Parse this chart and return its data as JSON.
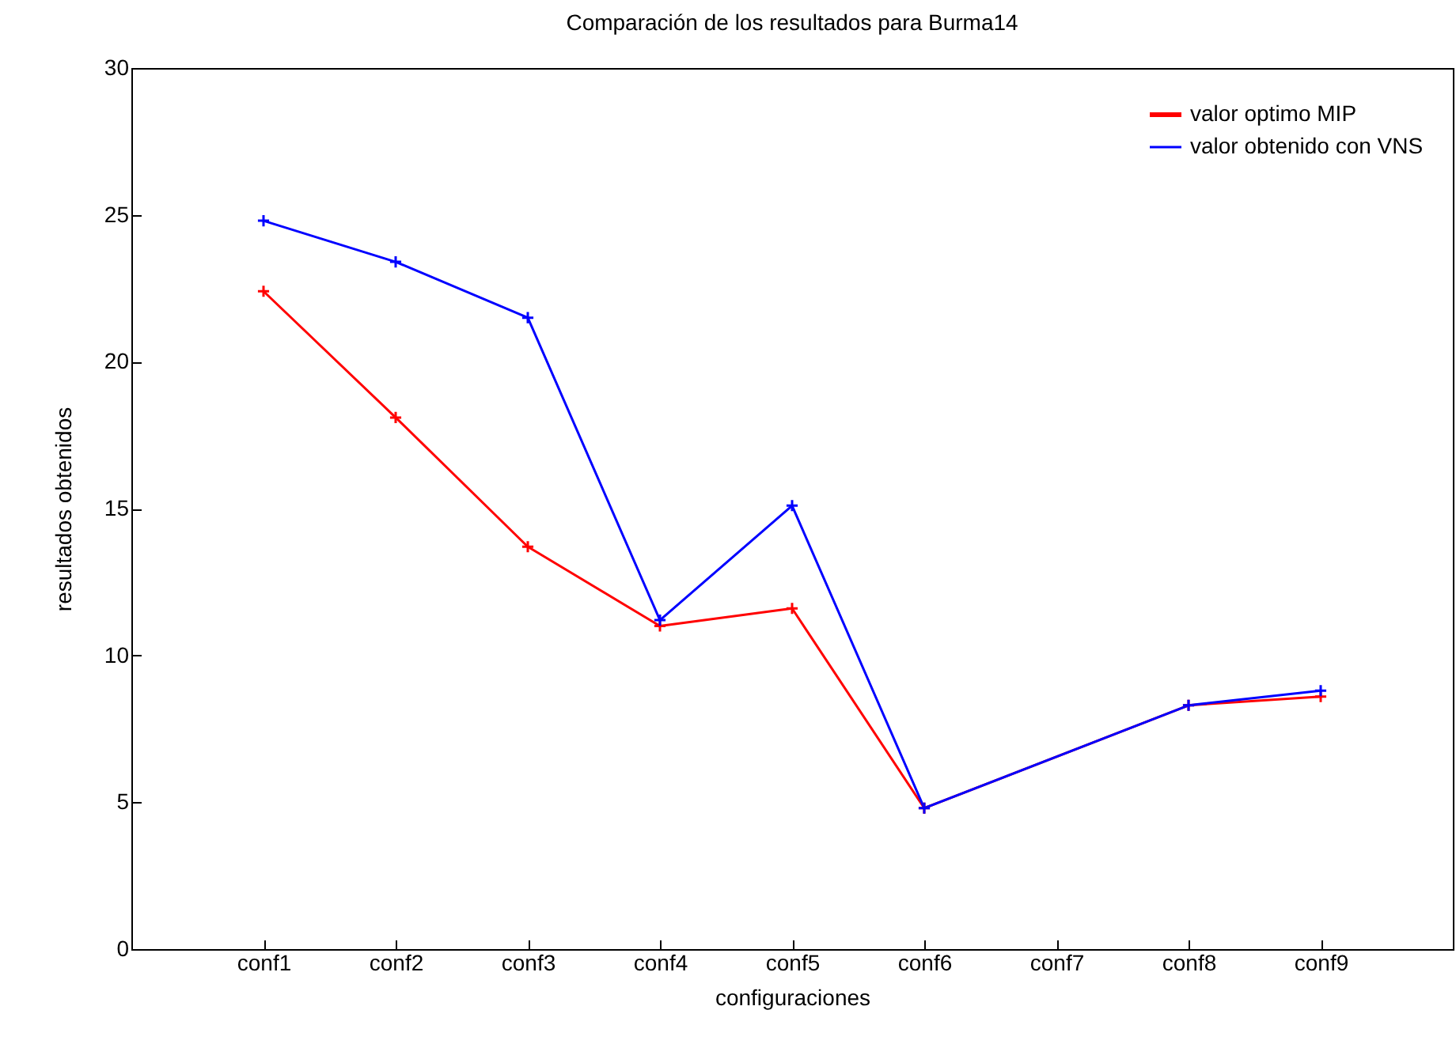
{
  "chart_data": {
    "type": "line",
    "title": "Comparación de los resultados para Burma14",
    "xlabel": "configuraciones",
    "ylabel": "resultados obtenidos",
    "categories": [
      "conf1",
      "conf2",
      "conf3",
      "conf4",
      "conf5",
      "conf6",
      "conf7",
      "conf8",
      "conf9"
    ],
    "series": [
      {
        "name": "valor optimo MIP",
        "color": "#ff0000",
        "x": [
          "conf1",
          "conf2",
          "conf3",
          "conf4",
          "conf5",
          "conf6",
          "conf8",
          "conf9"
        ],
        "values": [
          22.4,
          18.1,
          13.7,
          11.0,
          11.6,
          4.8,
          8.3,
          8.6
        ]
      },
      {
        "name": "valor obtenido con VNS",
        "color": "#0000ff",
        "x": [
          "conf1",
          "conf2",
          "conf3",
          "conf4",
          "conf5",
          "conf6",
          "conf8",
          "conf9"
        ],
        "values": [
          24.8,
          23.4,
          21.5,
          11.2,
          15.1,
          4.8,
          8.3,
          8.8
        ]
      }
    ],
    "ylim": [
      0,
      30
    ],
    "yticks": [
      0,
      5,
      10,
      15,
      20,
      25,
      30
    ],
    "grid": false,
    "legend": "top right",
    "marker": "cross",
    "line_style": "solid"
  }
}
